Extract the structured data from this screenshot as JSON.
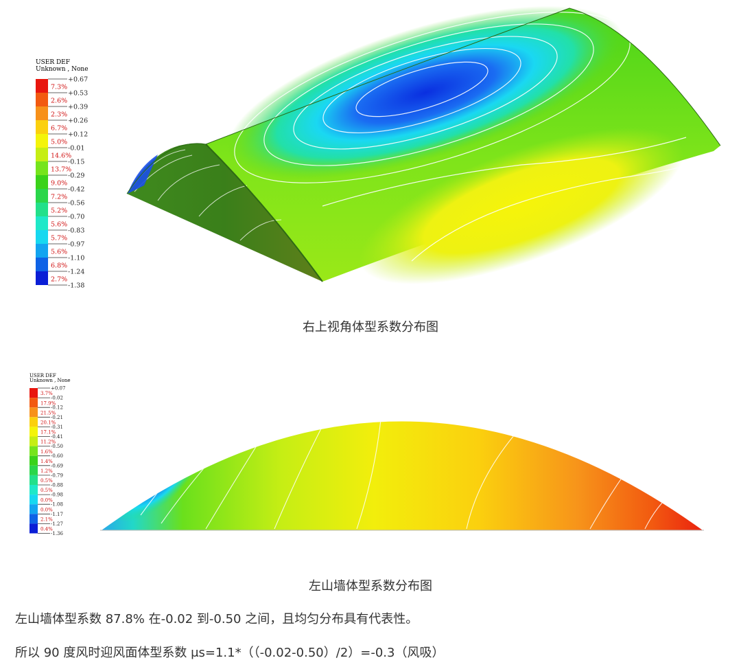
{
  "figure1": {
    "legend": {
      "header_line1": "USER DEF",
      "header_line2": "Unknown , None",
      "values": [
        "+0.67",
        "+0.53",
        "+0.39",
        "+0.26",
        "+0.12",
        "-0.01",
        "-0.15",
        "-0.29",
        "-0.42",
        "-0.56",
        "-0.70",
        "-0.83",
        "-0.97",
        "-1.10",
        "-1.24",
        "-1.38"
      ],
      "percents": [
        "7.3%",
        "2.6%",
        "2.3%",
        "6.7%",
        "5.0%",
        "14.6%",
        "13.7%",
        "9.0%",
        "7.2%",
        "5.2%",
        "5.6%",
        "5.7%",
        "5.6%",
        "6.8%",
        "2.7%"
      ],
      "colors": [
        "#e8160e",
        "#f25a10",
        "#f7911a",
        "#fbd00e",
        "#f4f40a",
        "#c6ee14",
        "#76e41c",
        "#3ad21a",
        "#2ad64a",
        "#22e08a",
        "#1ee8c8",
        "#16d8f0",
        "#12a4f0",
        "#0e62e6",
        "#0a1ed6"
      ]
    },
    "caption": "右上视角体型系数分布图"
  },
  "figure2": {
    "legend": {
      "header_line1": "USER DEF",
      "header_line2": "Unknown , None",
      "values": [
        "+0.07",
        "-0.02",
        "-0.12",
        "-0.21",
        "-0.31",
        "-0.41",
        "-0.50",
        "-0.60",
        "-0.69",
        "-0.79",
        "-0.88",
        "-0.98",
        "-1.08",
        "-1.17",
        "-1.27",
        "-1.36"
      ],
      "percents": [
        "3.7%",
        "17.9%",
        "21.5%",
        "20.1%",
        "17.1%",
        "11.2%",
        "1.6%",
        "1.4%",
        "1.2%",
        "0.5%",
        "0.5%",
        "0.0%",
        "0.0%",
        "2.1%",
        "0.4%"
      ],
      "colors": [
        "#e8160e",
        "#f25a10",
        "#f7911a",
        "#fbd00e",
        "#f4f40a",
        "#c6ee14",
        "#76e41c",
        "#3ad21a",
        "#2ad64a",
        "#22e08a",
        "#1ee8c8",
        "#16d8f0",
        "#12a4f0",
        "#0e62e6",
        "#0a1ed6"
      ]
    },
    "caption": "左山墙体型系数分布图"
  },
  "paragraphs": [
    "左山墙体型系数 87.8% 在-0.02 到-0.50 之间，且均匀分布具有代表性。",
    "所以 90 度风时迎风面体型系数 μs=1.1*（（-0.02-0.50）/2）=-0.3（风吸）"
  ]
}
